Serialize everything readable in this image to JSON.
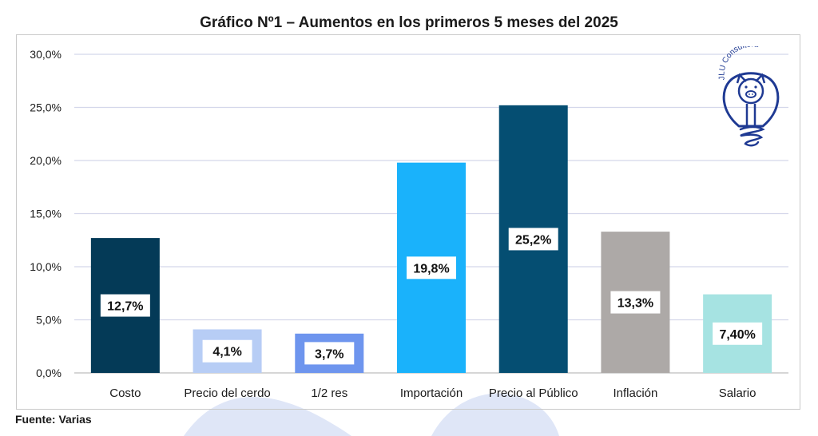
{
  "page": {
    "title": "Gráfico Nº1 – Aumentos en los primeros 5 meses del 2025",
    "source": "Fuente: Varias",
    "logo_text": "JLU Consultora",
    "logo_icon": "pig-lightbulb-icon"
  },
  "chart_data": {
    "type": "bar",
    "title": "Gráfico Nº1 – Aumentos en los primeros 5 meses del 2025",
    "xlabel": "",
    "ylabel": "",
    "categories": [
      "Costo",
      "Precio del cerdo",
      "1/2 res",
      "Importación",
      "Precio al Público",
      "Inflación",
      "Salario"
    ],
    "values": [
      12.7,
      4.1,
      3.7,
      19.8,
      25.2,
      13.3,
      7.4
    ],
    "value_labels": [
      "12,7%",
      "4,1%",
      "3,7%",
      "19,8%",
      "25,2%",
      "13,3%",
      "7,40%"
    ],
    "bar_colors": [
      "#043a57",
      "#b7cdf5",
      "#6e95ee",
      "#1ab2fb",
      "#054e72",
      "#ada9a7",
      "#a6e3e2"
    ],
    "ylim": [
      0,
      30
    ],
    "yticks": [
      0,
      5,
      10,
      15,
      20,
      25,
      30
    ],
    "ytick_labels": [
      "0,0%",
      "5,0%",
      "10,0%",
      "15,0%",
      "20,0%",
      "25,0%",
      "30,0%"
    ],
    "grid": true,
    "legend": "none"
  },
  "colors": {
    "gridline": "#d4d7ea",
    "axis": "#c8c8c8",
    "watermark": "#dfe6f7",
    "logo": "#1f3a93"
  }
}
